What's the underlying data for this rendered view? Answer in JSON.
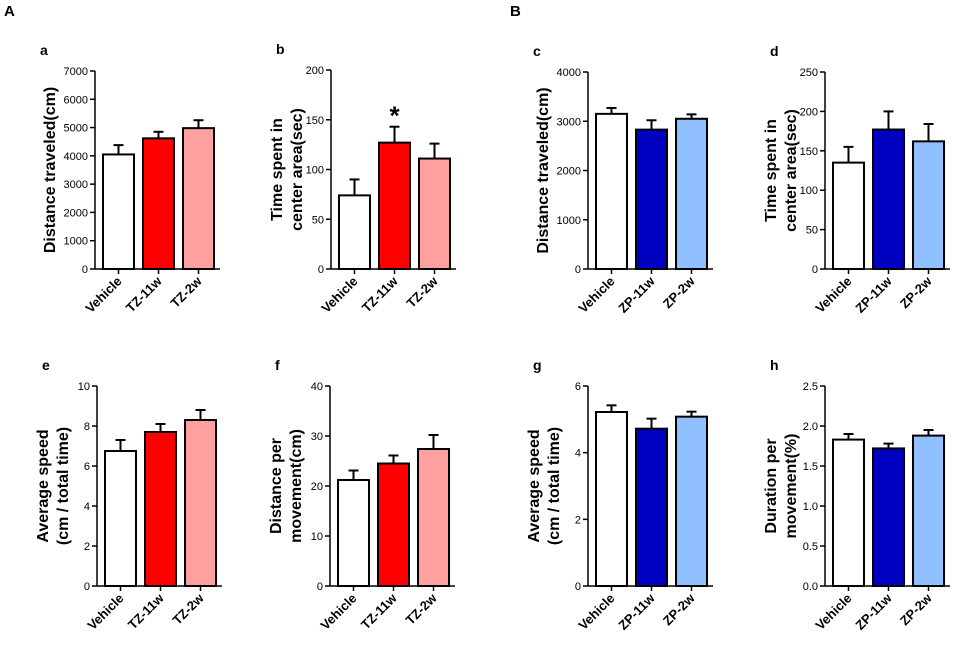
{
  "sections": [
    {
      "label": "A"
    },
    {
      "label": "B"
    }
  ],
  "colors": {
    "vehicle": "#ffffff",
    "tz_11w": "#ff0000",
    "tz_2w": "#ffa0a0",
    "zp_11w": "#0000c0",
    "zp_2w": "#90c0ff",
    "outline": "#000000"
  },
  "chart_data": [
    {
      "panel": "a",
      "type": "bar",
      "categories": [
        "Vehicle",
        "TZ-11w",
        "TZ-2w"
      ],
      "values": [
        4050,
        4620,
        4980
      ],
      "errors": [
        330,
        230,
        280
      ],
      "fills": [
        "vehicle",
        "tz_11w",
        "tz_2w"
      ],
      "ylabel": [
        "Distance traveled(cm)"
      ],
      "ylim": [
        0,
        7000
      ],
      "yticks": [
        0,
        1000,
        2000,
        3000,
        4000,
        5000,
        6000,
        7000
      ],
      "significance": [
        "",
        "",
        ""
      ]
    },
    {
      "panel": "b",
      "type": "bar",
      "categories": [
        "Vehicle",
        "TZ-11w",
        "TZ-2w"
      ],
      "values": [
        74,
        127,
        111
      ],
      "errors": [
        16,
        16,
        15
      ],
      "fills": [
        "vehicle",
        "tz_11w",
        "tz_2w"
      ],
      "ylabel": [
        "Time spent in",
        "center area(sec)"
      ],
      "ylim": [
        0,
        200
      ],
      "yticks": [
        0,
        50,
        100,
        150,
        200
      ],
      "significance": [
        "",
        "*",
        ""
      ]
    },
    {
      "panel": "c",
      "type": "bar",
      "categories": [
        "Vehicle",
        "ZP-11w",
        "ZP-2w"
      ],
      "values": [
        3150,
        2830,
        3050
      ],
      "errors": [
        120,
        190,
        90
      ],
      "fills": [
        "vehicle",
        "zp_11w",
        "zp_2w"
      ],
      "ylabel": [
        "Distance traveled(cm)"
      ],
      "ylim": [
        0,
        4000
      ],
      "yticks": [
        0,
        1000,
        2000,
        3000,
        4000
      ],
      "significance": [
        "",
        "",
        ""
      ]
    },
    {
      "panel": "d",
      "type": "bar",
      "categories": [
        "Vehicle",
        "ZP-11w",
        "ZP-2w"
      ],
      "values": [
        135,
        177,
        162
      ],
      "errors": [
        20,
        23,
        22
      ],
      "fills": [
        "vehicle",
        "zp_11w",
        "zp_2w"
      ],
      "ylabel": [
        "Time spent in",
        "center area(sec)"
      ],
      "ylim": [
        0,
        250
      ],
      "yticks": [
        0,
        50,
        100,
        150,
        200,
        250
      ],
      "significance": [
        "",
        "",
        ""
      ]
    },
    {
      "panel": "e",
      "type": "bar",
      "categories": [
        "Vehicle",
        "TZ-11w",
        "TZ-2w"
      ],
      "values": [
        6.75,
        7.7,
        8.3
      ],
      "errors": [
        0.55,
        0.4,
        0.5
      ],
      "fills": [
        "vehicle",
        "tz_11w",
        "tz_2w"
      ],
      "ylabel": [
        "Average speed",
        "(cm / total time)"
      ],
      "ylim": [
        0,
        10
      ],
      "yticks": [
        0,
        2,
        4,
        6,
        8,
        10
      ],
      "significance": [
        "",
        "",
        ""
      ]
    },
    {
      "panel": "f",
      "type": "bar",
      "categories": [
        "Vehicle",
        "TZ-11w",
        "TZ-2w"
      ],
      "values": [
        21.2,
        24.5,
        27.4
      ],
      "errors": [
        1.9,
        1.6,
        2.8
      ],
      "fills": [
        "vehicle",
        "tz_11w",
        "tz_2w"
      ],
      "ylabel": [
        "Distance per",
        "movement(cm)"
      ],
      "ylim": [
        0,
        40
      ],
      "yticks": [
        0,
        10,
        20,
        30,
        40
      ],
      "significance": [
        "",
        "",
        ""
      ]
    },
    {
      "panel": "g",
      "type": "bar",
      "categories": [
        "Vehicle",
        "ZP-11w",
        "ZP-2w"
      ],
      "values": [
        5.22,
        4.72,
        5.08
      ],
      "errors": [
        0.2,
        0.3,
        0.15
      ],
      "fills": [
        "vehicle",
        "zp_11w",
        "zp_2w"
      ],
      "ylabel": [
        "Average speed",
        "(cm / total time)"
      ],
      "ylim": [
        0,
        6
      ],
      "yticks": [
        0,
        2,
        4,
        6
      ],
      "significance": [
        "",
        "",
        ""
      ]
    },
    {
      "panel": "h",
      "type": "bar",
      "categories": [
        "Vehicle",
        "ZP-11w",
        "ZP-2w"
      ],
      "values": [
        1.83,
        1.72,
        1.88
      ],
      "errors": [
        0.07,
        0.06,
        0.07
      ],
      "fills": [
        "vehicle",
        "zp_11w",
        "zp_2w"
      ],
      "ylabel": [
        "Duration per",
        "movement(%)"
      ],
      "ylim": [
        0,
        2.5
      ],
      "yticks": [
        0,
        0.5,
        1.0,
        1.5,
        2.0,
        2.5
      ],
      "significance": [
        "",
        "",
        ""
      ]
    }
  ]
}
